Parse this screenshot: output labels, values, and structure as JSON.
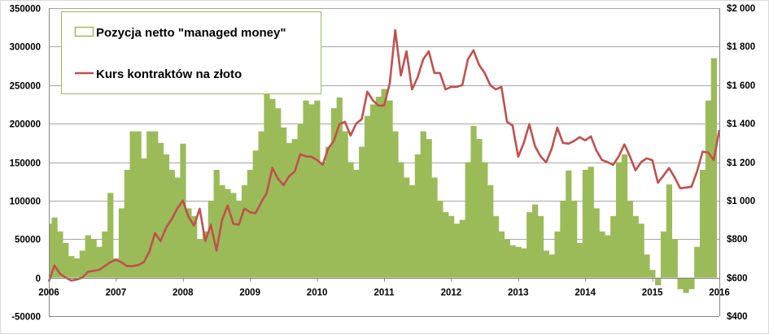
{
  "chart_data": {
    "type": "bar+line",
    "title": "",
    "x_start_year": 2006,
    "points_per_year": 12,
    "x_tick_labels": [
      "2006",
      "2007",
      "2008",
      "2009",
      "2010",
      "2011",
      "2012",
      "2013",
      "2014",
      "2015",
      "2016"
    ],
    "left_axis": {
      "ylim": [
        -50000,
        350000
      ],
      "tick_labels": [
        "-50000",
        "0",
        "50000",
        "100000",
        "150000",
        "200000",
        "250000",
        "300000",
        "350000"
      ]
    },
    "right_axis": {
      "ylim": [
        400,
        2000
      ],
      "tick_labels": [
        "$400",
        "$600",
        "$800",
        "$1 000",
        "$1 200",
        "$1 400",
        "$1 600",
        "$1 800",
        "$2 000"
      ]
    },
    "grid": true,
    "legend": {
      "placement": "top-left",
      "entries": [
        "Pozycja netto \"managed money\"",
        "Kurs kontraktów na złoto"
      ]
    },
    "series": [
      {
        "name": "Pozycja netto \"managed money\"",
        "type": "bar",
        "axis": "left",
        "color": "#9bbb59",
        "values": [
          70000,
          78000,
          60000,
          45000,
          28000,
          25000,
          35000,
          55000,
          50000,
          40000,
          60000,
          110000,
          25000,
          90000,
          140000,
          190000,
          190000,
          155000,
          190000,
          190000,
          175000,
          160000,
          140000,
          130000,
          174000,
          90000,
          80000,
          50000,
          60000,
          100000,
          140000,
          120000,
          115000,
          110000,
          100000,
          120000,
          140000,
          165000,
          190000,
          239000,
          232000,
          220000,
          195000,
          175000,
          180000,
          200000,
          230000,
          225000,
          230000,
          150000,
          170000,
          220000,
          234000,
          190000,
          150000,
          140000,
          170000,
          210000,
          225000,
          235000,
          245000,
          230000,
          190000,
          150000,
          130000,
          120000,
          160000,
          190000,
          180000,
          130000,
          100000,
          85000,
          80000,
          70000,
          75000,
          150000,
          197000,
          180000,
          150000,
          120000,
          80000,
          60000,
          50000,
          42000,
          40000,
          38000,
          85000,
          95000,
          80000,
          35000,
          30000,
          60000,
          100000,
          139000,
          100000,
          45000,
          140000,
          144000,
          90000,
          60000,
          55000,
          80000,
          150000,
          160000,
          100000,
          80000,
          70000,
          30000,
          10000,
          -10000,
          60000,
          121000,
          50000,
          -15000,
          -20000,
          -15000,
          40000,
          140000,
          230000,
          285000
        ]
      },
      {
        "name": "Kurs kontraktów na złoto",
        "type": "line",
        "axis": "right",
        "color": "#c0504d",
        "values": [
          580,
          663,
          620,
          600,
          585,
          590,
          600,
          630,
          635,
          640,
          660,
          680,
          693,
          680,
          660,
          660,
          665,
          680,
          735,
          832,
          790,
          860,
          904,
          960,
          1000,
          916,
          870,
          958,
          790,
          875,
          740,
          900,
          975,
          880,
          875,
          960,
          940,
          935,
          990,
          1040,
          1170,
          1114,
          1080,
          1127,
          1150,
          1241,
          1230,
          1228,
          1211,
          1186,
          1270,
          1310,
          1397,
          1410,
          1338,
          1400,
          1423,
          1566,
          1520,
          1494,
          1494,
          1608,
          1886,
          1650,
          1776,
          1578,
          1640,
          1734,
          1776,
          1663,
          1663,
          1578,
          1591,
          1591,
          1600,
          1734,
          1781,
          1705,
          1663,
          1600,
          1578,
          1591,
          1410,
          1390,
          1228,
          1300,
          1397,
          1283,
          1230,
          1199,
          1270,
          1380,
          1300,
          1296,
          1310,
          1330,
          1313,
          1334,
          1260,
          1211,
          1200,
          1186,
          1230,
          1292,
          1230,
          1157,
          1200,
          1220,
          1210,
          1093,
          1130,
          1169,
          1120,
          1064,
          1068,
          1072,
          1150,
          1254,
          1250,
          1211,
          1367
        ]
      }
    ]
  }
}
